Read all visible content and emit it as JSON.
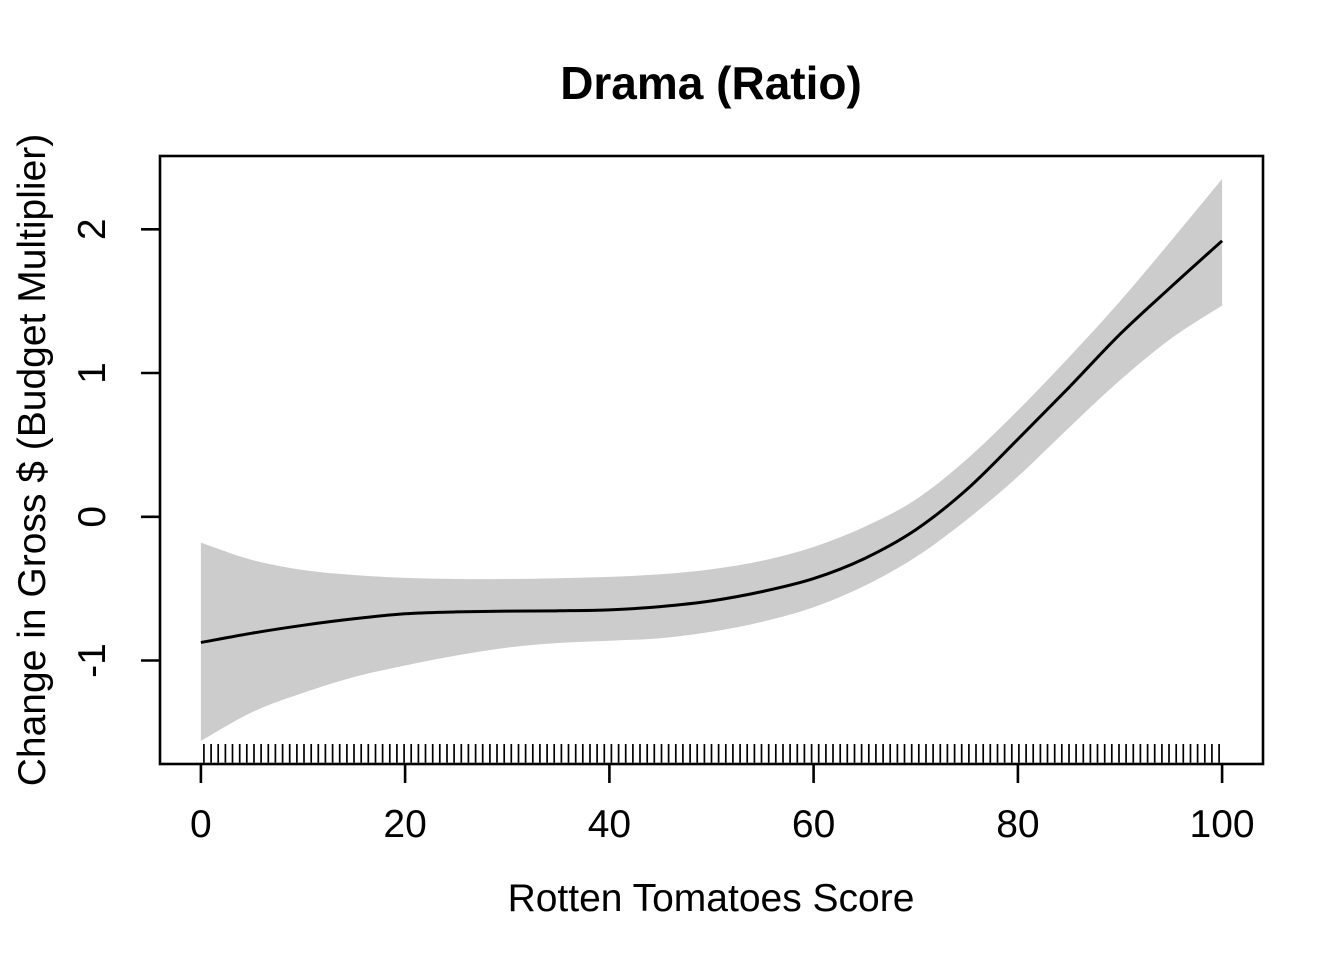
{
  "figure": {
    "background": "#FFFFFF"
  },
  "chart_data": {
    "type": "line",
    "title": "Drama (Ratio)",
    "xlabel": "Rotten Tomatoes Score",
    "ylabel": "Change in Gross $ (Budget Multiplier)",
    "grid": false,
    "legend": null,
    "xlim": [
      -4,
      104
    ],
    "ylim": [
      -1.72,
      2.51
    ],
    "x_ticks": [
      0,
      20,
      40,
      60,
      80,
      100
    ],
    "x_tick_labels": [
      "0",
      "20",
      "40",
      "60",
      "80",
      "100"
    ],
    "y_ticks": [
      -1,
      0,
      1,
      2
    ],
    "y_tick_labels": [
      "-1",
      "0",
      "1",
      "2"
    ],
    "colors": {
      "line": "#000000",
      "band": "#CCCCCC",
      "text": "#000000",
      "background": "#FFFFFF"
    },
    "x": [
      0,
      5,
      10,
      15,
      20,
      25,
      30,
      35,
      40,
      45,
      50,
      55,
      60,
      65,
      70,
      75,
      80,
      85,
      90,
      95,
      100
    ],
    "series": [
      {
        "name": "smooth_fit",
        "values": [
          -0.875,
          -0.81,
          -0.755,
          -0.71,
          -0.675,
          -0.662,
          -0.656,
          -0.654,
          -0.648,
          -0.625,
          -0.585,
          -0.52,
          -0.43,
          -0.29,
          -0.09,
          0.19,
          0.54,
          0.9,
          1.27,
          1.6,
          1.92
        ]
      },
      {
        "name": "ci_upper",
        "values": [
          -0.18,
          -0.3,
          -0.37,
          -0.405,
          -0.425,
          -0.433,
          -0.433,
          -0.428,
          -0.418,
          -0.4,
          -0.365,
          -0.305,
          -0.21,
          -0.07,
          0.12,
          0.4,
          0.74,
          1.11,
          1.5,
          1.92,
          2.35
        ]
      },
      {
        "name": "ci_lower",
        "values": [
          -1.56,
          -1.36,
          -1.225,
          -1.115,
          -1.035,
          -0.965,
          -0.91,
          -0.878,
          -0.862,
          -0.845,
          -0.8,
          -0.73,
          -0.63,
          -0.48,
          -0.28,
          -0.02,
          0.28,
          0.62,
          0.95,
          1.24,
          1.47
        ]
      }
    ],
    "rug_x": [
      0.3,
      1,
      1.7,
      2.4,
      3.1,
      3.8,
      4.5,
      5.2,
      5.9,
      6.6,
      7.3,
      8,
      8.7,
      9.4,
      10.1,
      10.8,
      11.5,
      12.2,
      12.9,
      13.6,
      14.3,
      15,
      15.7,
      16.4,
      17.1,
      17.8,
      18.5,
      19.2,
      19.9,
      20.6,
      21.3,
      22,
      22.7,
      23.4,
      24.1,
      24.8,
      25.5,
      26.2,
      26.9,
      27.6,
      28.3,
      29,
      29.7,
      30.4,
      31.1,
      31.8,
      32.5,
      33.2,
      33.9,
      34.6,
      35.3,
      36,
      36.7,
      37.4,
      38.1,
      38.8,
      39.5,
      40.2,
      40.9,
      41.6,
      42.3,
      43,
      43.7,
      44.4,
      45.1,
      45.8,
      46.5,
      47.2,
      47.9,
      48.6,
      49.3,
      50,
      50.7,
      51.4,
      52.1,
      52.8,
      53.5,
      54.2,
      54.9,
      55.6,
      56.3,
      57,
      57.7,
      58.4,
      59.1,
      59.8,
      60.5,
      61.2,
      61.9,
      62.6,
      63.3,
      64,
      64.7,
      65.4,
      66.1,
      66.8,
      67.5,
      68.2,
      68.9,
      69.6,
      70.3,
      71,
      71.7,
      72.4,
      73.1,
      73.8,
      74.5,
      75.2,
      75.9,
      76.6,
      77.3,
      78,
      78.7,
      79.4,
      80.1,
      80.8,
      81.5,
      82.2,
      82.9,
      83.6,
      84.3,
      85,
      85.7,
      86.4,
      87.1,
      87.8,
      88.5,
      89.2,
      89.9,
      90.6,
      91.3,
      92,
      92.7,
      93.4,
      94.1,
      94.8,
      95.5,
      96.2,
      96.9,
      97.6,
      98.3,
      99,
      99.7
    ]
  }
}
